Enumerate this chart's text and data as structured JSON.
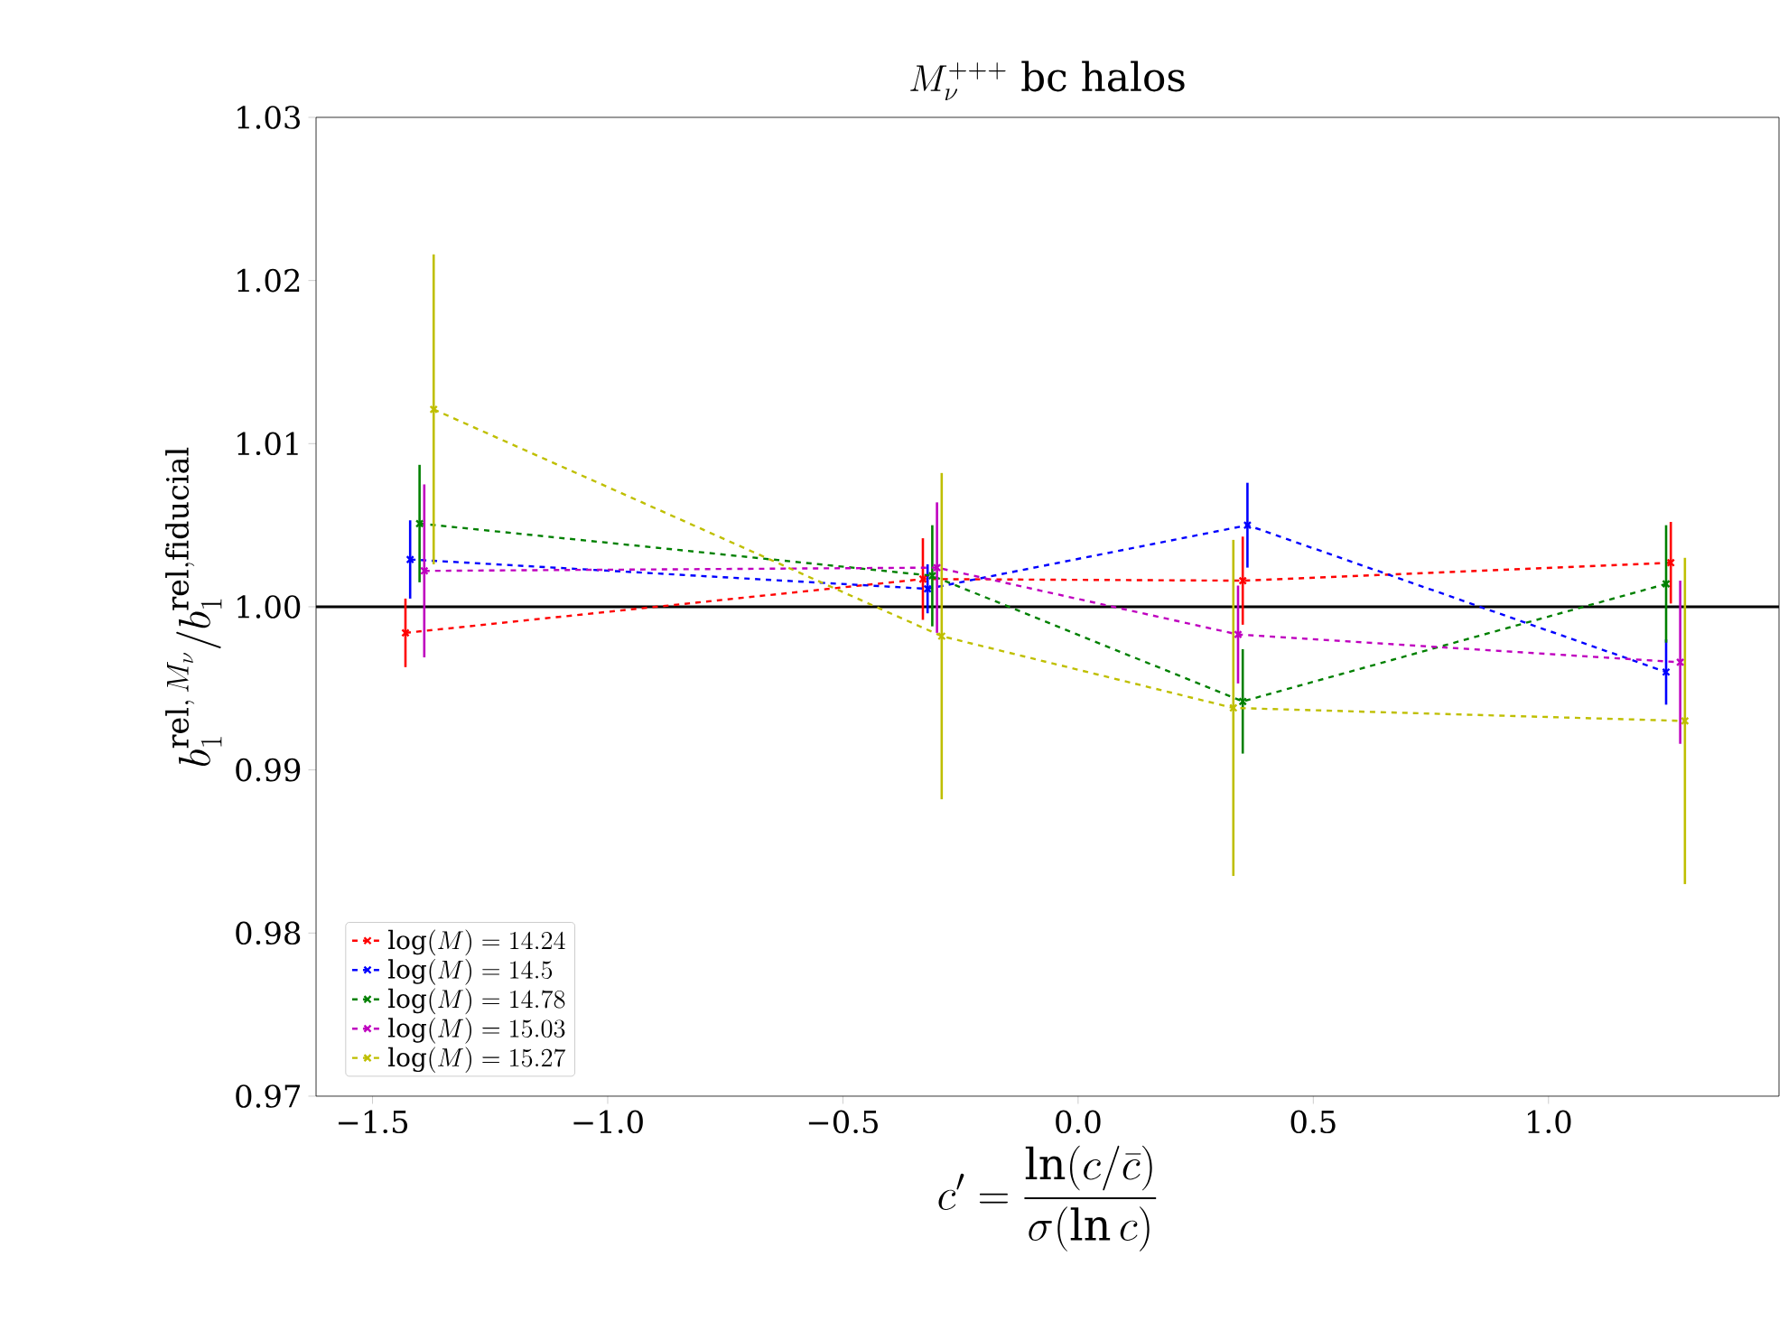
{
  "chart_data": {
    "type": "line",
    "title": "M_\\nu^{+++}\\ \\mathrm{bc\\ halos}",
    "xlabel": "c' = \\frac{\\ln(c/\\bar{c})}{\\sigma(\\ln c)}",
    "ylabel": "b_1^{\\mathrm{rel},\\,M_\\nu}/b_1^{\\mathrm{rel,fiducial}}",
    "series": [
      {
        "name": "\\log(M) = 14.24",
        "color": "#ff0000",
        "x": [
          -1.43,
          -0.33,
          0.35,
          1.26
        ],
        "values": [
          0.9984,
          1.0017,
          1.0016,
          1.0027
        ],
        "errors": [
          0.0021,
          0.0025,
          0.0027,
          0.0025
        ]
      },
      {
        "name": "\\log(M) = 14.5",
        "color": "#0000ff",
        "x": [
          -1.42,
          -0.32,
          0.36,
          1.25
        ],
        "values": [
          1.0029,
          1.0011,
          1.005,
          0.996
        ],
        "errors": [
          0.0024,
          0.0015,
          0.0026,
          0.002
        ]
      },
      {
        "name": "\\log(M) = 14.78",
        "color": "#008000",
        "x": [
          -1.4,
          -0.31,
          0.35,
          1.25
        ],
        "values": [
          1.0051,
          1.0019,
          0.9942,
          1.0014
        ],
        "errors": [
          0.0036,
          0.0031,
          0.0032,
          0.0036
        ]
      },
      {
        "name": "\\log(M) = 15.03",
        "color": "#bf00bf",
        "x": [
          -1.39,
          -0.3,
          0.34,
          1.28
        ],
        "values": [
          1.0022,
          1.0024,
          0.9983,
          0.9966
        ],
        "errors": [
          0.0053,
          0.004,
          0.003,
          0.005
        ]
      },
      {
        "name": "\\log(M) = 15.27",
        "color": "#bfbf00",
        "x": [
          -1.37,
          -0.29,
          0.33,
          1.29
        ],
        "values": [
          1.0121,
          0.9982,
          0.9938,
          0.993
        ],
        "errors": [
          0.0095,
          0.01,
          0.0103,
          0.01
        ]
      }
    ],
    "xlim": [
      -1.62,
      1.49
    ],
    "ylim": [
      0.97,
      1.03
    ],
    "xticks": [
      {
        "value": -1.5,
        "label": "−1.5"
      },
      {
        "value": -1.0,
        "label": "−1.0"
      },
      {
        "value": -0.5,
        "label": "−0.5"
      },
      {
        "value": 0.0,
        "label": "0.0"
      },
      0.5,
      {
        "value": 1.0,
        "label": "1.0"
      }
    ],
    "yticks": [
      {
        "value": 0.97,
        "label": "0.97"
      },
      {
        "value": 0.98,
        "label": "0.98"
      },
      {
        "value": 0.99,
        "label": "0.99"
      },
      {
        "value": 1.0,
        "label": "1.00"
      },
      {
        "value": 1.01,
        "label": "1.01"
      },
      {
        "value": 1.02,
        "label": "1.02"
      },
      {
        "value": 1.03,
        "label": "1.03"
      }
    ],
    "ref_lines": [
      {
        "axis": "y",
        "value": 1.0,
        "color": "#000000"
      }
    ],
    "legend": "bottom left",
    "grid": false,
    "marker": "cross",
    "line_style": "dashed"
  }
}
